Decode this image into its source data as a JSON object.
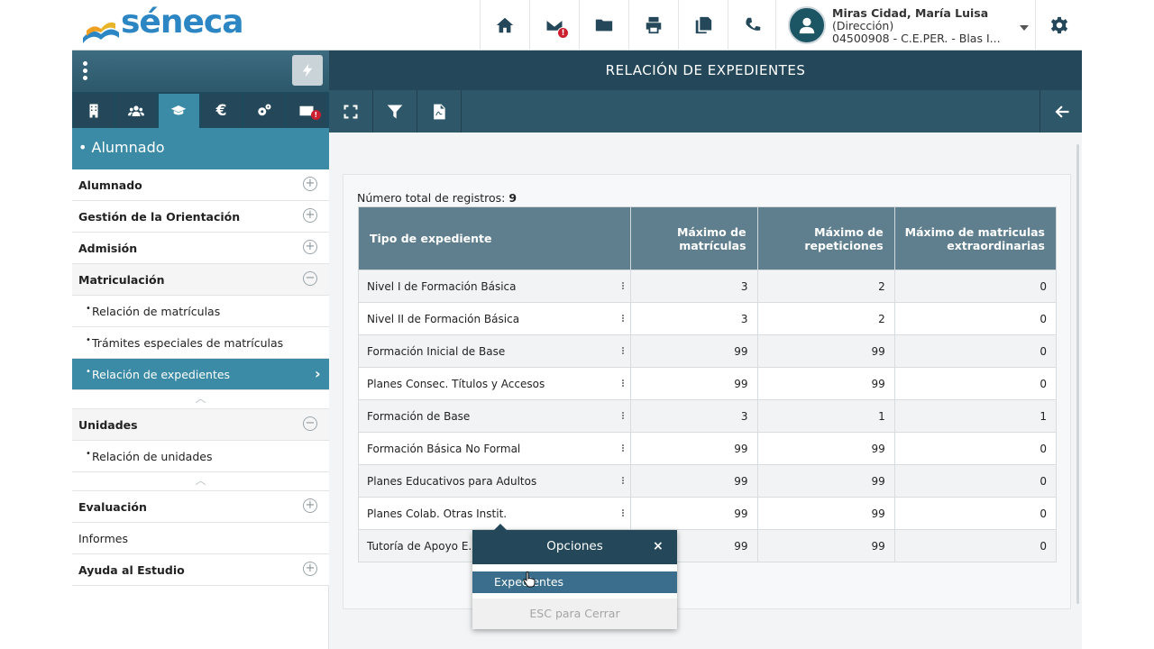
{
  "header": {
    "logo_text": "séneca",
    "user": {
      "name": "Miras Cidad, María Luisa",
      "role": "(Dirección)",
      "center": "04500908 - C.E.PER. - Blas I..."
    },
    "mail_badge": "!",
    "icons": [
      "home-icon",
      "mail-icon",
      "folder-icon",
      "print-icon",
      "copy-icon",
      "phone-icon",
      "gear-icon"
    ]
  },
  "sidebar": {
    "tabs": [
      {
        "name": "building-icon"
      },
      {
        "name": "users-icon"
      },
      {
        "name": "graduation-cap-icon"
      },
      {
        "name": "euro-icon",
        "text": "€"
      },
      {
        "name": "cogs-icon"
      },
      {
        "name": "mail-icon",
        "badge": "!"
      }
    ],
    "section_title": "• Alumnado",
    "items": [
      {
        "label": "Alumnado"
      },
      {
        "label": "Gestión de la Orientación"
      },
      {
        "label": "Admisión"
      },
      {
        "label": "Matriculación"
      },
      {
        "label": "Relación de matrículas"
      },
      {
        "label": "Trámites especiales de matrículas"
      },
      {
        "label": "Relación de expedientes"
      },
      {
        "label": "Unidades"
      },
      {
        "label": "Relación de unidades"
      },
      {
        "label": "Evaluación"
      },
      {
        "label": "Informes"
      },
      {
        "label": "Ayuda al Estudio"
      }
    ]
  },
  "main": {
    "title": "RELACIÓN DE EXPEDIENTES",
    "total_label": "Número total de registros:",
    "total_value": "9",
    "columns": [
      "Tipo de expediente",
      "Máximo de matrículas",
      "Máximo de repeticiones",
      "Máximo de matriculas extraordinarias"
    ],
    "rows": [
      [
        "Nivel I de Formación Básica",
        "3",
        "2",
        "0"
      ],
      [
        "Nivel II de Formación Básica",
        "3",
        "2",
        "0"
      ],
      [
        "Formación Inicial de Base",
        "99",
        "99",
        "0"
      ],
      [
        "Planes Consec. Títulos y Accesos",
        "99",
        "99",
        "0"
      ],
      [
        "Formación de Base",
        "3",
        "1",
        "1"
      ],
      [
        "Formación Básica No Formal",
        "99",
        "99",
        "0"
      ],
      [
        "Planes Educativos para Adultos",
        "99",
        "99",
        "0"
      ],
      [
        "Planes Colab. Otras Instit.",
        "99",
        "99",
        "0"
      ],
      [
        "Tutoría de Apoyo E...",
        "99",
        "99",
        "0"
      ]
    ]
  },
  "popup": {
    "title": "Opciones",
    "close": "×",
    "item": "Expedientes",
    "esc": "ESC para Cerrar"
  }
}
